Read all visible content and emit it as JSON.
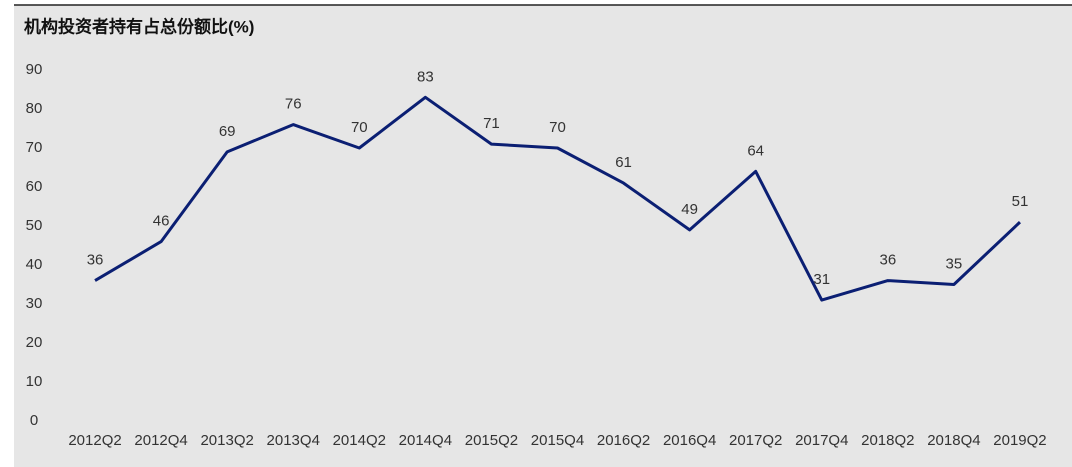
{
  "chart_data": {
    "type": "line",
    "title": "机构投资者持有占总份额比(%)",
    "categories": [
      "2012Q2",
      "2012Q4",
      "2013Q2",
      "2013Q4",
      "2014Q2",
      "2014Q4",
      "2015Q2",
      "2015Q4",
      "2016Q2",
      "2016Q4",
      "2017Q2",
      "2017Q4",
      "2018Q2",
      "2018Q4",
      "2019Q2"
    ],
    "series": [
      {
        "name": "机构投资者持有占总份额比",
        "color": "#0b1f73",
        "values": [
          36,
          46,
          69,
          76,
          70,
          83,
          71,
          70,
          61,
          49,
          64,
          31,
          36,
          35,
          51
        ]
      }
    ],
    "ylim": [
      0,
      90
    ],
    "yticks": [
      0,
      10,
      20,
      30,
      40,
      50,
      60,
      70,
      80,
      90
    ],
    "grid": false
  }
}
